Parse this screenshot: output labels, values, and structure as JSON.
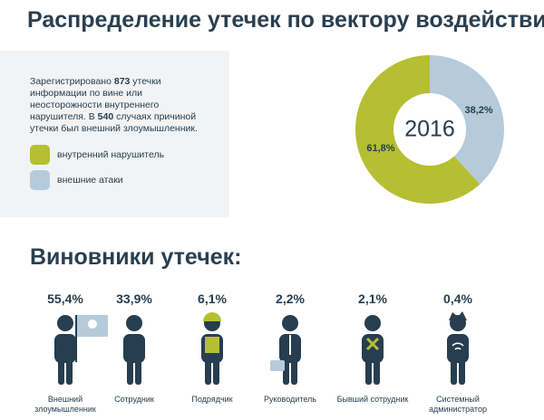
{
  "title": "Распределение утечек по вектору воздействия:",
  "info": {
    "parts": [
      "Зарегистрировано ",
      "873",
      " утечки информации по вине или неосторожности внутреннего нарушителя. В ",
      "540",
      " случаях причиной утечки был внешний злоумышленник."
    ]
  },
  "chart_data": [
    {
      "type": "donut",
      "center_label": "2016",
      "categories": [
        "внутренний нарушитель",
        "внешние атаки"
      ],
      "values": [
        61.8,
        38.2
      ],
      "value_labels": [
        "61,8%",
        "38,2%"
      ],
      "colors": [
        "#b5bf32",
        "#b5cbdb"
      ]
    },
    {
      "type": "pictogram",
      "title": "Виновники утечек:",
      "categories": [
        "Внешний злоумышленник",
        "Сотрудник",
        "Подрядчик",
        "Руководитель",
        "Бывший сотрудник",
        "Системный администратор"
      ],
      "values": [
        55.4,
        33.9,
        6.1,
        2.2,
        2.1,
        0.4
      ],
      "value_labels": [
        "55,4%",
        "33,9%",
        "6,1%",
        "2,2%",
        "2,1%",
        "0,4%"
      ],
      "color": "#263e4f"
    }
  ]
}
